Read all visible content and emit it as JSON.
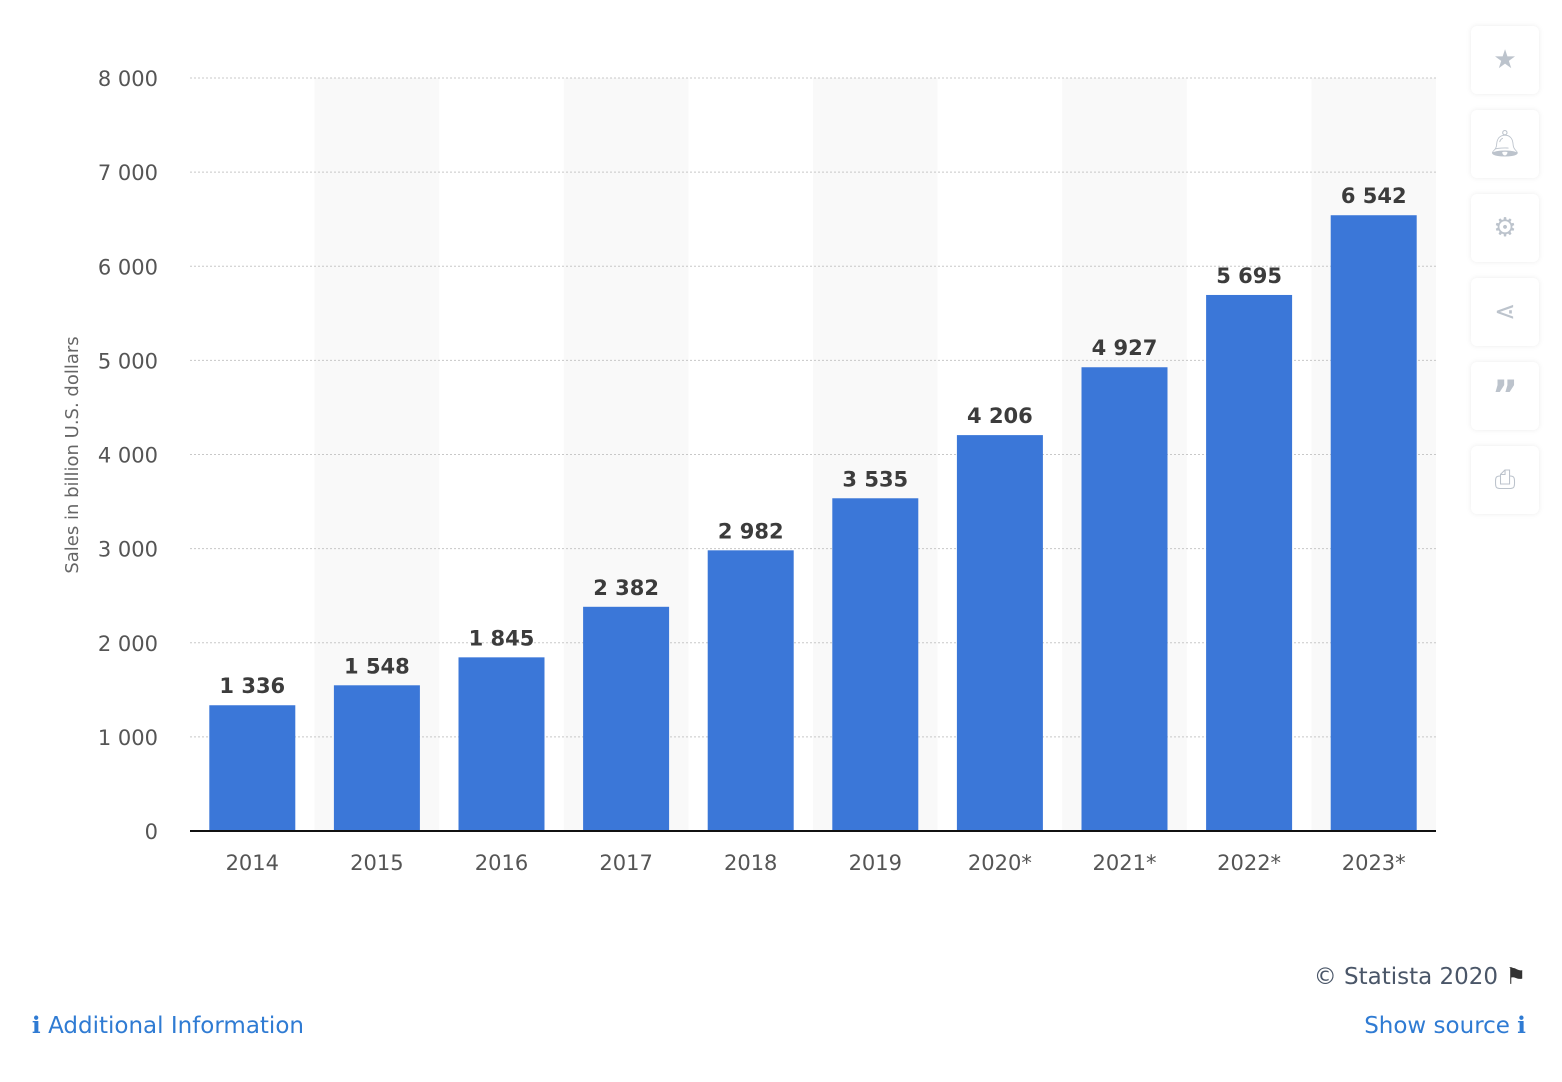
{
  "chart_data": {
    "type": "bar",
    "categories": [
      "2014",
      "2015",
      "2016",
      "2017",
      "2018",
      "2019",
      "2020*",
      "2021*",
      "2022*",
      "2023*"
    ],
    "values": [
      1336,
      1548,
      1845,
      2382,
      2982,
      3535,
      4206,
      4927,
      5695,
      6542
    ],
    "data_labels": [
      "1 336",
      "1 548",
      "1 845",
      "2 382",
      "2 982",
      "3 535",
      "4 206",
      "4 927",
      "5 695",
      "6 542"
    ],
    "ylabel": "Sales in billion U.S. dollars",
    "ylim": [
      0,
      8000
    ],
    "yticks": [
      0,
      1000,
      2000,
      3000,
      4000,
      5000,
      6000,
      7000,
      8000
    ],
    "ytick_labels": [
      "0",
      "1 000",
      "2 000",
      "3 000",
      "4 000",
      "5 000",
      "6 000",
      "7 000",
      "8 000"
    ],
    "grid": true,
    "bar_color": "#3b77d8"
  },
  "sidebar": [
    "star-icon",
    "bell-icon",
    "gear-icon",
    "share-icon",
    "quote-icon",
    "print-icon"
  ],
  "footer": {
    "copyright": "© Statista 2020",
    "additional_info": "Additional Information",
    "show_source": "Show source"
  },
  "colors": {
    "link": "#2f7bd3",
    "text": "#4a5668"
  }
}
